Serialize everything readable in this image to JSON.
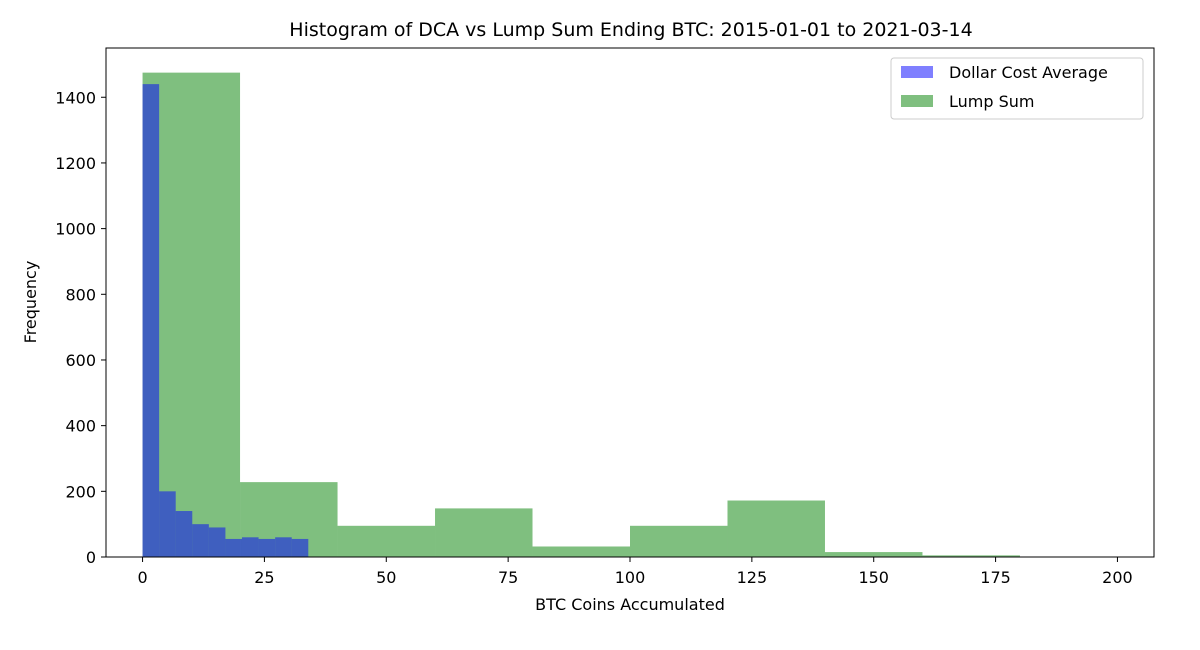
{
  "chart_data": {
    "type": "bar",
    "title": "Histogram of DCA vs Lump Sum Ending BTC: 2015-01-01 to 2021-03-14",
    "xlabel": "BTC Coins Accumulated",
    "ylabel": "Frequency",
    "xlim": [
      -7.5,
      207.5
    ],
    "ylim": [
      0,
      1550
    ],
    "xticks": [
      0,
      25,
      50,
      75,
      100,
      125,
      150,
      175,
      200
    ],
    "yticks": [
      0,
      200,
      400,
      600,
      800,
      1000,
      1200,
      1400
    ],
    "grid": false,
    "legend_position": "top-right",
    "series": [
      {
        "name": "Dollar Cost Average",
        "color": "#0000ff",
        "alpha": 0.5,
        "bins": [
          {
            "x0": 0,
            "x1": 3.4,
            "count": 1440
          },
          {
            "x0": 3.4,
            "x1": 6.8,
            "count": 200
          },
          {
            "x0": 6.8,
            "x1": 10.2,
            "count": 140
          },
          {
            "x0": 10.2,
            "x1": 13.6,
            "count": 100
          },
          {
            "x0": 13.6,
            "x1": 17.0,
            "count": 90
          },
          {
            "x0": 17.0,
            "x1": 20.4,
            "count": 55
          },
          {
            "x0": 20.4,
            "x1": 23.8,
            "count": 60
          },
          {
            "x0": 23.8,
            "x1": 27.2,
            "count": 55
          },
          {
            "x0": 27.2,
            "x1": 30.6,
            "count": 60
          },
          {
            "x0": 30.6,
            "x1": 34.0,
            "count": 55
          }
        ]
      },
      {
        "name": "Lump Sum",
        "color": "#008000",
        "alpha": 0.5,
        "bins": [
          {
            "x0": 0,
            "x1": 20,
            "count": 1475
          },
          {
            "x0": 20,
            "x1": 40,
            "count": 228
          },
          {
            "x0": 40,
            "x1": 60,
            "count": 95
          },
          {
            "x0": 60,
            "x1": 80,
            "count": 148
          },
          {
            "x0": 80,
            "x1": 100,
            "count": 32
          },
          {
            "x0": 100,
            "x1": 120,
            "count": 95
          },
          {
            "x0": 120,
            "x1": 140,
            "count": 172
          },
          {
            "x0": 140,
            "x1": 160,
            "count": 15
          },
          {
            "x0": 160,
            "x1": 180,
            "count": 5
          },
          {
            "x0": 180,
            "x1": 200,
            "count": 0
          }
        ]
      }
    ]
  }
}
